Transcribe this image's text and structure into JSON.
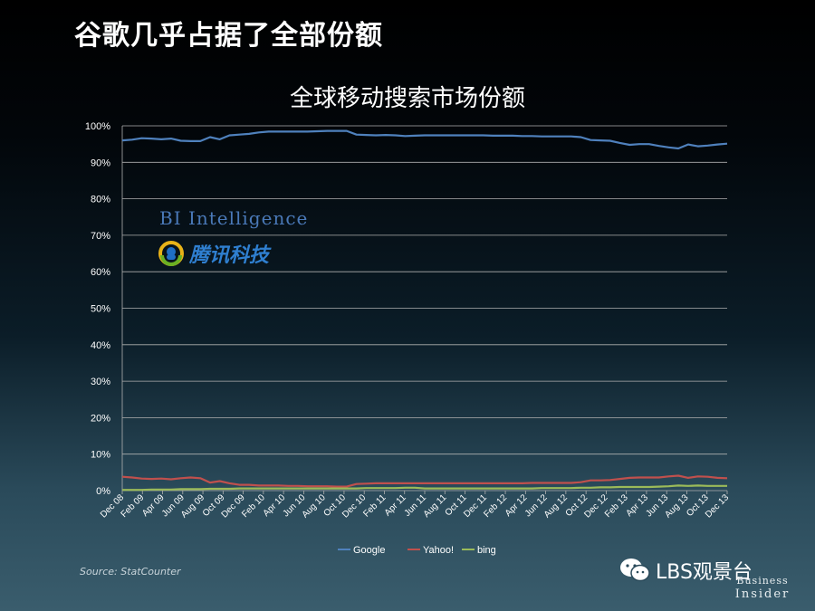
{
  "slide": {
    "title": "谷歌几乎占据了全部份额",
    "source": "Source: StatCounter",
    "watermark_bi": "BI Intelligence",
    "watermark_tencent": "腾讯科技",
    "wechat_account": "LBS观景台",
    "publisher_line1": "Business",
    "publisher_line2": "Insider"
  },
  "colors": {
    "google": "#4f81bd",
    "yahoo": "#c0504d",
    "bing": "#9bbb59",
    "grid": "#b0b0b0",
    "axis_text": "#ffffff"
  },
  "chart_data": {
    "type": "line",
    "title": "全球移动搜索市场份额",
    "xlabel": "",
    "ylabel": "",
    "ylim": [
      0,
      100
    ],
    "y_ticks": [
      "0%",
      "10%",
      "20%",
      "30%",
      "40%",
      "50%",
      "60%",
      "70%",
      "80%",
      "90%",
      "100%"
    ],
    "x_tick_labels": [
      "Dec 08",
      "Feb 09",
      "Apr 09",
      "Jun 09",
      "Aug 09",
      "Oct 09",
      "Dec 09",
      "Feb 10",
      "Apr 10",
      "Jun 10",
      "Aug 10",
      "Oct 10",
      "Dec 10",
      "Feb 11",
      "Apr 11",
      "Jun 11",
      "Aug 11",
      "Oct 11",
      "Dec 11",
      "Feb 12",
      "Apr 12",
      "Jun 12",
      "Aug 12",
      "Oct 12",
      "Dec 12",
      "Feb 13",
      "Apr 13",
      "Jun 13",
      "Aug 13",
      "Oct 13",
      "Dec 13"
    ],
    "legend": [
      "Google",
      "Yahoo!",
      "bing"
    ],
    "legend_position": "bottom",
    "series": [
      {
        "name": "Google",
        "values": [
          96.0,
          96.2,
          96.6,
          96.5,
          96.3,
          96.5,
          95.9,
          95.8,
          95.8,
          96.9,
          96.3,
          97.4,
          97.6,
          97.8,
          98.2,
          98.4,
          98.4,
          98.4,
          98.4,
          98.4,
          98.5,
          98.6,
          98.6,
          98.6,
          97.6,
          97.5,
          97.4,
          97.5,
          97.4,
          97.2,
          97.3,
          97.4,
          97.4,
          97.4,
          97.4,
          97.4,
          97.4,
          97.4,
          97.3,
          97.3,
          97.3,
          97.2,
          97.2,
          97.1,
          97.1,
          97.1,
          97.1,
          96.9,
          96.1,
          96.0,
          95.9,
          95.3,
          94.8,
          95.0,
          95.0,
          94.5,
          94.1,
          93.8,
          94.9,
          94.4,
          94.6,
          94.9,
          95.1
        ]
      },
      {
        "name": "Yahoo!",
        "values": [
          3.8,
          3.6,
          3.3,
          3.2,
          3.3,
          3.1,
          3.4,
          3.6,
          3.4,
          2.2,
          2.6,
          2.0,
          1.6,
          1.6,
          1.4,
          1.4,
          1.4,
          1.3,
          1.3,
          1.2,
          1.2,
          1.2,
          1.1,
          1.1,
          1.8,
          1.9,
          2.0,
          2.0,
          2.0,
          2.0,
          2.0,
          2.0,
          2.0,
          2.0,
          2.0,
          2.0,
          2.0,
          2.0,
          2.0,
          2.0,
          2.0,
          2.0,
          2.1,
          2.1,
          2.1,
          2.1,
          2.1,
          2.3,
          2.8,
          2.8,
          2.9,
          3.2,
          3.5,
          3.6,
          3.6,
          3.6,
          3.9,
          4.1,
          3.5,
          3.9,
          3.8,
          3.5,
          3.4
        ]
      },
      {
        "name": "bing",
        "values": [
          0.2,
          0.2,
          0.2,
          0.3,
          0.3,
          0.3,
          0.4,
          0.4,
          0.4,
          0.5,
          0.5,
          0.5,
          0.6,
          0.6,
          0.6,
          0.6,
          0.6,
          0.6,
          0.6,
          0.6,
          0.6,
          0.6,
          0.6,
          0.6,
          0.6,
          0.7,
          0.7,
          0.7,
          0.7,
          0.8,
          0.8,
          0.6,
          0.6,
          0.6,
          0.6,
          0.6,
          0.6,
          0.6,
          0.6,
          0.6,
          0.6,
          0.6,
          0.6,
          0.7,
          0.7,
          0.7,
          0.7,
          0.8,
          0.8,
          0.9,
          0.9,
          1.0,
          1.0,
          1.0,
          1.0,
          1.1,
          1.2,
          1.4,
          1.3,
          1.4,
          1.3,
          1.3,
          1.3
        ]
      }
    ]
  }
}
